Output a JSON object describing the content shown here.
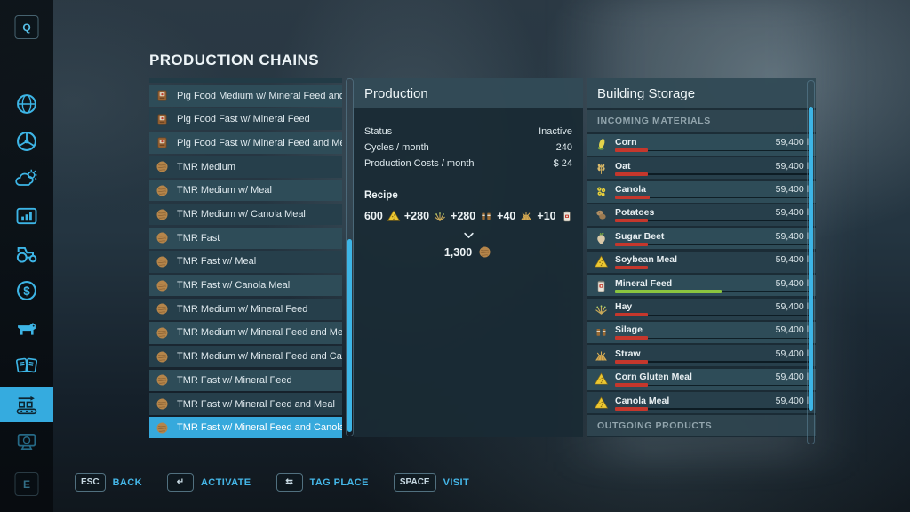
{
  "page_title": "PRODUCTION CHAINS",
  "colors": {
    "accent": "#35abdf",
    "bar_red": "#c5372c",
    "bar_green": "#8bc53f",
    "warning_yellow": "#ecc832"
  },
  "sidebar": {
    "top_key_hint": "Q",
    "bottom_key_hint": "E",
    "icons": [
      "map-globe",
      "vehicles-steering-wheel",
      "weather",
      "statistics",
      "garage-tractor",
      "finances",
      "animals",
      "contracts",
      "production-chains",
      "shop"
    ],
    "selected": "production-chains"
  },
  "production_list": {
    "items": [
      {
        "label": "Pig Food Medium w/ Mineral Feed and Meal",
        "icon": "pig-food",
        "selected": false
      },
      {
        "label": "Pig Food Fast w/ Mineral Feed",
        "icon": "pig-food",
        "selected": false
      },
      {
        "label": "Pig Food Fast w/ Mineral Feed and Meal",
        "icon": "pig-food",
        "selected": false
      },
      {
        "label": "TMR Medium",
        "icon": "tmr",
        "selected": false
      },
      {
        "label": "TMR Medium w/ Meal",
        "icon": "tmr",
        "selected": false
      },
      {
        "label": "TMR Medium w/ Canola Meal",
        "icon": "tmr",
        "selected": false
      },
      {
        "label": "TMR Fast",
        "icon": "tmr",
        "selected": false
      },
      {
        "label": "TMR Fast w/ Meal",
        "icon": "tmr",
        "selected": false
      },
      {
        "label": "TMR Fast w/ Canola Meal",
        "icon": "tmr",
        "selected": false
      },
      {
        "label": "TMR Medium w/ Mineral Feed",
        "icon": "tmr",
        "selected": false
      },
      {
        "label": "TMR Medium w/ Mineral Feed and Meal",
        "icon": "tmr",
        "selected": false
      },
      {
        "label": "TMR Medium w/ Mineral Feed and Canola Meal",
        "icon": "tmr",
        "selected": false
      },
      {
        "label": "TMR Fast w/ Mineral Feed",
        "icon": "tmr",
        "selected": false
      },
      {
        "label": "TMR Fast w/ Mineral Feed and Meal",
        "icon": "tmr",
        "selected": false
      },
      {
        "label": "TMR Fast w/ Mineral Feed and Canola Meal",
        "icon": "tmr",
        "selected": true
      }
    ]
  },
  "production_panel": {
    "title": "Production",
    "rows": [
      {
        "label": "Status",
        "value": "Inactive"
      },
      {
        "label": "Cycles / month",
        "value": "240"
      },
      {
        "label": "Production Costs / month",
        "value": "$ 24"
      }
    ],
    "recipe": {
      "label": "Recipe",
      "inputs": [
        {
          "amount": "600",
          "icon": "soybean-meal"
        },
        {
          "amount": "+280",
          "icon": "hay"
        },
        {
          "amount": "+280",
          "icon": "silage"
        },
        {
          "amount": "+40",
          "icon": "straw"
        },
        {
          "amount": "+10",
          "icon": "mineral-feed"
        }
      ],
      "output": {
        "amount": "1,300",
        "icon": "tmr"
      }
    }
  },
  "storage_panel": {
    "title": "Building Storage",
    "incoming_header": "INCOMING MATERIALS",
    "outgoing_header": "OUTGOING PRODUCTS",
    "items": [
      {
        "name": "Corn",
        "icon": "corn",
        "amount": "59,400 l",
        "fill_pct": 17,
        "bar_color": "#c5372c"
      },
      {
        "name": "Oat",
        "icon": "oat",
        "amount": "59,400 l",
        "fill_pct": 17,
        "bar_color": "#c5372c"
      },
      {
        "name": "Canola",
        "icon": "canola",
        "amount": "59,400 l",
        "fill_pct": 18,
        "bar_color": "#c5372c"
      },
      {
        "name": "Potatoes",
        "icon": "potatoes",
        "amount": "59,400 l",
        "fill_pct": 17,
        "bar_color": "#c5372c"
      },
      {
        "name": "Sugar Beet",
        "icon": "sugar-beet",
        "amount": "59,400 l",
        "fill_pct": 17,
        "bar_color": "#c5372c"
      },
      {
        "name": "Soybean Meal",
        "icon": "soybean-meal",
        "amount": "59,400 l",
        "fill_pct": 17,
        "bar_color": "#c5372c"
      },
      {
        "name": "Mineral Feed",
        "icon": "mineral-feed",
        "amount": "59,400 l",
        "fill_pct": 55,
        "bar_color": "#8bc53f"
      },
      {
        "name": "Hay",
        "icon": "hay",
        "amount": "59,400 l",
        "fill_pct": 17,
        "bar_color": "#c5372c"
      },
      {
        "name": "Silage",
        "icon": "silage",
        "amount": "59,400 l",
        "fill_pct": 17,
        "bar_color": "#c5372c"
      },
      {
        "name": "Straw",
        "icon": "straw",
        "amount": "59,400 l",
        "fill_pct": 17,
        "bar_color": "#c5372c"
      },
      {
        "name": "Corn Gluten Meal",
        "icon": "corn-gluten-meal",
        "amount": "59,400 l",
        "fill_pct": 17,
        "bar_color": "#c5372c"
      },
      {
        "name": "Canola Meal",
        "icon": "canola-meal",
        "amount": "59,400 l",
        "fill_pct": 17,
        "bar_color": "#c5372c"
      }
    ]
  },
  "toolbar": {
    "actions": [
      {
        "key": "ESC",
        "label": "BACK"
      },
      {
        "key": "↵",
        "label": "ACTIVATE"
      },
      {
        "key": "⇆",
        "label": "TAG PLACE"
      },
      {
        "key": "SPACE",
        "label": "VISIT"
      }
    ]
  }
}
